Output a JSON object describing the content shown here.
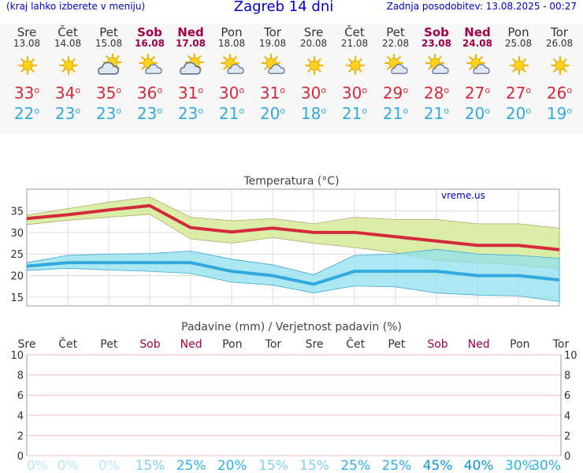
{
  "header": {
    "left": "(kraj lahko izberete v meniju)",
    "title": "Zagreb 14 dni",
    "right": "Zadnja posodobitev: 13.08.2025 - 00:27"
  },
  "colors": {
    "max": "#d42a3c",
    "min": "#33aadd",
    "weekend": "#a0004a",
    "band_max": "#d6ec9e",
    "band_min": "#8fe0ee",
    "brand": "#0000cc"
  },
  "days": [
    {
      "day": "Sre",
      "date": "13.08",
      "weekend": false,
      "icon": "sun-icon",
      "max": "33",
      "min": "22"
    },
    {
      "day": "Čet",
      "date": "14.08",
      "weekend": false,
      "icon": "sun-icon",
      "max": "34",
      "min": "23"
    },
    {
      "day": "Pet",
      "date": "15.08",
      "weekend": false,
      "icon": "partly-cloudy-icon",
      "max": "35",
      "min": "23"
    },
    {
      "day": "Sob",
      "date": "16.08",
      "weekend": true,
      "icon": "sun-cloud-icon",
      "max": "36",
      "min": "23"
    },
    {
      "day": "Ned",
      "date": "17.08",
      "weekend": true,
      "icon": "partly-cloudy-icon",
      "max": "31",
      "min": "23"
    },
    {
      "day": "Pon",
      "date": "18.08",
      "weekend": false,
      "icon": "sun-cloud-icon",
      "max": "30",
      "min": "21"
    },
    {
      "day": "Tor",
      "date": "19.08",
      "weekend": false,
      "icon": "sun-cloud-icon",
      "max": "31",
      "min": "20"
    },
    {
      "day": "Sre",
      "date": "20.08",
      "weekend": false,
      "icon": "sun-icon",
      "max": "30",
      "min": "18"
    },
    {
      "day": "Čet",
      "date": "21.08",
      "weekend": false,
      "icon": "sun-icon",
      "max": "30",
      "min": "21"
    },
    {
      "day": "Pet",
      "date": "22.08",
      "weekend": false,
      "icon": "sun-cloud-icon",
      "max": "29",
      "min": "21"
    },
    {
      "day": "Sob",
      "date": "23.08",
      "weekend": true,
      "icon": "sun-cloud-icon",
      "max": "28",
      "min": "21"
    },
    {
      "day": "Ned",
      "date": "24.08",
      "weekend": true,
      "icon": "sun-cloud-icon",
      "max": "27",
      "min": "20"
    },
    {
      "day": "Pon",
      "date": "25.08",
      "weekend": false,
      "icon": "sun-icon",
      "max": "27",
      "min": "20"
    },
    {
      "day": "Tor",
      "date": "26.08",
      "weekend": false,
      "icon": "sun-icon",
      "max": "26",
      "min": "19"
    }
  ],
  "chart_data": [
    {
      "type": "line",
      "title": "Temperatura (°C)",
      "watermark": "vreme.us",
      "ylim": [
        13,
        40
      ],
      "yticks": [
        15,
        20,
        25,
        30,
        35
      ],
      "grid": true,
      "x": [
        "13.08",
        "14.08",
        "15.08",
        "16.08",
        "17.08",
        "18.08",
        "19.08",
        "20.08",
        "21.08",
        "22.08",
        "23.08",
        "24.08",
        "25.08",
        "26.08"
      ],
      "series": [
        {
          "values": [
            33.2,
            34.1,
            35.2,
            36.2,
            31.1,
            30.1,
            31.0,
            30.0,
            30.0,
            29.0,
            28.0,
            27.0,
            27.0,
            26.0
          ]
        },
        {
          "values": [
            22.2,
            23.0,
            23.0,
            23.0,
            23.0,
            21.0,
            20.0,
            18.0,
            21.0,
            21.0,
            21.0,
            20.0,
            20.0,
            19.0
          ]
        }
      ],
      "bands": [
        {
          "upper": [
            34.0,
            35.5,
            37.0,
            38.2,
            33.5,
            32.7,
            33.2,
            32.0,
            33.5,
            33.0,
            33.0,
            32.0,
            32.0,
            31.0
          ],
          "lower": [
            31.8,
            32.8,
            33.5,
            34.2,
            28.5,
            27.5,
            28.8,
            27.5,
            26.5,
            25.3,
            23.5,
            23.0,
            22.5,
            21.5
          ]
        },
        {
          "upper": [
            23.0,
            24.7,
            25.0,
            25.1,
            25.7,
            23.8,
            22.5,
            20.2,
            24.7,
            25.0,
            26.1,
            25.0,
            24.7,
            24.0
          ],
          "lower": [
            21.2,
            21.7,
            21.3,
            21.0,
            20.5,
            18.5,
            17.8,
            16.0,
            17.6,
            17.4,
            16.0,
            15.5,
            15.3,
            14.0
          ]
        }
      ]
    },
    {
      "type": "bar",
      "title": "Padavine (mm) / Verjetnost padavin (%)",
      "categories": [
        "Sre",
        "Čet",
        "Pet",
        "Sob",
        "Ned",
        "Pon",
        "Tor",
        "Sre",
        "Čet",
        "Pet",
        "Sob",
        "Ned",
        "Pon",
        "Tor"
      ],
      "weekend": [
        false,
        false,
        false,
        true,
        true,
        false,
        false,
        false,
        false,
        false,
        true,
        true,
        false,
        false
      ],
      "values": [
        0,
        0,
        0,
        0,
        0,
        0,
        0,
        0,
        0,
        0,
        0,
        0,
        0,
        0
      ],
      "ylim": [
        0,
        10
      ],
      "yticks": [
        "0",
        "2",
        "4",
        "6",
        "8",
        "10"
      ],
      "probability": [
        "0%",
        "0%",
        "0%",
        "15%",
        "25%",
        "20%",
        "15%",
        "15%",
        "25%",
        "25%",
        "45%",
        "40%",
        "30%",
        "30%"
      ]
    }
  ]
}
